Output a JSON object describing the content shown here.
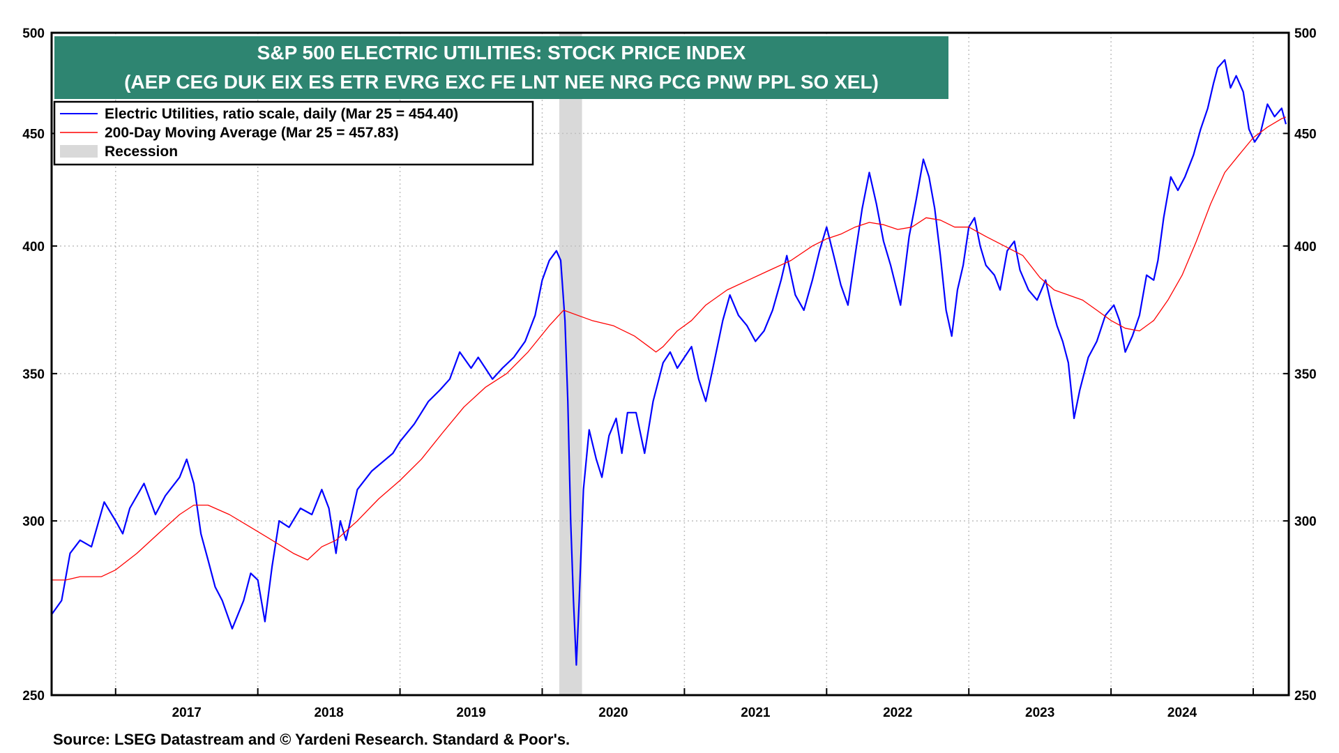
{
  "source_note": "Source: LSEG Datastream and © Yardeni Research. Standard & Poor's.",
  "chart_data": {
    "type": "line",
    "title": "S&P 500 ELECTRIC UTILITIES: STOCK PRICE INDEX",
    "subtitle": "(AEP CEG DUK EIX ES ETR EVRG EXC FE LNT NEE NRG PCG PNW PPL SO XEL)",
    "y_scale": "log",
    "ylim": [
      250,
      500
    ],
    "y_ticks": [
      250,
      300,
      350,
      400,
      450,
      500
    ],
    "xlim": [
      2016.55,
      2025.25
    ],
    "x_ticks": [
      {
        "label": "2017",
        "value": 2017.0
      },
      {
        "label": "2018",
        "value": 2018.0
      },
      {
        "label": "2019",
        "value": 2019.0
      },
      {
        "label": "2020",
        "value": 2020.0
      },
      {
        "label": "2021",
        "value": 2021.0
      },
      {
        "label": "2022",
        "value": 2022.0
      },
      {
        "label": "2023",
        "value": 2023.0
      },
      {
        "label": "2024",
        "value": 2024.0
      }
    ],
    "grid": true,
    "legend_position": "top-left",
    "recession": {
      "label": "Recession",
      "start": 2020.12,
      "end": 2020.28,
      "color": "#d9d9d9"
    },
    "series": [
      {
        "name": "Electric Utilities, ratio scale, daily (Mar 25 = 454.40)",
        "color": "#0000ff",
        "points": [
          [
            2016.55,
            272
          ],
          [
            2016.62,
            276
          ],
          [
            2016.68,
            290
          ],
          [
            2016.75,
            294
          ],
          [
            2016.83,
            292
          ],
          [
            2016.92,
            306
          ],
          [
            2017.0,
            300
          ],
          [
            2017.05,
            296
          ],
          [
            2017.1,
            304
          ],
          [
            2017.2,
            312
          ],
          [
            2017.28,
            302
          ],
          [
            2017.35,
            308
          ],
          [
            2017.45,
            314
          ],
          [
            2017.5,
            320
          ],
          [
            2017.55,
            312
          ],
          [
            2017.6,
            296
          ],
          [
            2017.65,
            288
          ],
          [
            2017.7,
            280
          ],
          [
            2017.75,
            276
          ],
          [
            2017.82,
            268
          ],
          [
            2017.9,
            276
          ],
          [
            2017.95,
            284
          ],
          [
            2018.0,
            282
          ],
          [
            2018.05,
            270
          ],
          [
            2018.1,
            286
          ],
          [
            2018.15,
            300
          ],
          [
            2018.22,
            298
          ],
          [
            2018.3,
            304
          ],
          [
            2018.38,
            302
          ],
          [
            2018.45,
            310
          ],
          [
            2018.5,
            304
          ],
          [
            2018.55,
            290
          ],
          [
            2018.58,
            300
          ],
          [
            2018.62,
            294
          ],
          [
            2018.7,
            310
          ],
          [
            2018.8,
            316
          ],
          [
            2018.9,
            320
          ],
          [
            2018.95,
            322
          ],
          [
            2019.0,
            326
          ],
          [
            2019.1,
            332
          ],
          [
            2019.2,
            340
          ],
          [
            2019.28,
            344
          ],
          [
            2019.35,
            348
          ],
          [
            2019.42,
            358
          ],
          [
            2019.5,
            352
          ],
          [
            2019.55,
            356
          ],
          [
            2019.6,
            352
          ],
          [
            2019.65,
            348
          ],
          [
            2019.72,
            352
          ],
          [
            2019.8,
            356
          ],
          [
            2019.88,
            362
          ],
          [
            2019.95,
            372
          ],
          [
            2020.0,
            386
          ],
          [
            2020.05,
            394
          ],
          [
            2020.1,
            398
          ],
          [
            2020.13,
            394
          ],
          [
            2020.16,
            370
          ],
          [
            2020.18,
            340
          ],
          [
            2020.2,
            300
          ],
          [
            2020.22,
            276
          ],
          [
            2020.24,
            258
          ],
          [
            2020.26,
            276
          ],
          [
            2020.29,
            310
          ],
          [
            2020.33,
            330
          ],
          [
            2020.38,
            320
          ],
          [
            2020.42,
            314
          ],
          [
            2020.47,
            328
          ],
          [
            2020.52,
            334
          ],
          [
            2020.56,
            322
          ],
          [
            2020.6,
            336
          ],
          [
            2020.66,
            336
          ],
          [
            2020.72,
            322
          ],
          [
            2020.78,
            340
          ],
          [
            2020.85,
            354
          ],
          [
            2020.9,
            358
          ],
          [
            2020.95,
            352
          ],
          [
            2021.0,
            356
          ],
          [
            2021.05,
            360
          ],
          [
            2021.1,
            348
          ],
          [
            2021.15,
            340
          ],
          [
            2021.2,
            352
          ],
          [
            2021.27,
            370
          ],
          [
            2021.32,
            380
          ],
          [
            2021.38,
            372
          ],
          [
            2021.44,
            368
          ],
          [
            2021.5,
            362
          ],
          [
            2021.56,
            366
          ],
          [
            2021.62,
            374
          ],
          [
            2021.68,
            386
          ],
          [
            2021.72,
            396
          ],
          [
            2021.78,
            380
          ],
          [
            2021.84,
            374
          ],
          [
            2021.9,
            386
          ],
          [
            2021.95,
            398
          ],
          [
            2022.0,
            408
          ],
          [
            2022.05,
            396
          ],
          [
            2022.1,
            384
          ],
          [
            2022.15,
            376
          ],
          [
            2022.2,
            396
          ],
          [
            2022.25,
            416
          ],
          [
            2022.3,
            432
          ],
          [
            2022.35,
            418
          ],
          [
            2022.4,
            402
          ],
          [
            2022.45,
            392
          ],
          [
            2022.52,
            376
          ],
          [
            2022.58,
            404
          ],
          [
            2022.63,
            420
          ],
          [
            2022.68,
            438
          ],
          [
            2022.72,
            430
          ],
          [
            2022.76,
            416
          ],
          [
            2022.8,
            396
          ],
          [
            2022.84,
            374
          ],
          [
            2022.88,
            364
          ],
          [
            2022.92,
            382
          ],
          [
            2022.96,
            392
          ],
          [
            2023.0,
            408
          ],
          [
            2023.04,
            412
          ],
          [
            2023.08,
            400
          ],
          [
            2023.12,
            392
          ],
          [
            2023.18,
            388
          ],
          [
            2023.22,
            382
          ],
          [
            2023.27,
            398
          ],
          [
            2023.32,
            402
          ],
          [
            2023.36,
            390
          ],
          [
            2023.42,
            382
          ],
          [
            2023.48,
            378
          ],
          [
            2023.54,
            386
          ],
          [
            2023.58,
            376
          ],
          [
            2023.62,
            368
          ],
          [
            2023.66,
            362
          ],
          [
            2023.7,
            354
          ],
          [
            2023.74,
            334
          ],
          [
            2023.78,
            344
          ],
          [
            2023.84,
            356
          ],
          [
            2023.9,
            362
          ],
          [
            2023.96,
            372
          ],
          [
            2024.02,
            376
          ],
          [
            2024.06,
            370
          ],
          [
            2024.1,
            358
          ],
          [
            2024.15,
            364
          ],
          [
            2024.2,
            372
          ],
          [
            2024.25,
            388
          ],
          [
            2024.3,
            386
          ],
          [
            2024.33,
            394
          ],
          [
            2024.37,
            412
          ],
          [
            2024.42,
            430
          ],
          [
            2024.47,
            424
          ],
          [
            2024.52,
            430
          ],
          [
            2024.58,
            440
          ],
          [
            2024.63,
            452
          ],
          [
            2024.68,
            462
          ],
          [
            2024.72,
            474
          ],
          [
            2024.75,
            482
          ],
          [
            2024.8,
            486
          ],
          [
            2024.84,
            472
          ],
          [
            2024.88,
            478
          ],
          [
            2024.93,
            470
          ],
          [
            2024.97,
            452
          ],
          [
            2025.01,
            446
          ],
          [
            2025.05,
            450
          ],
          [
            2025.1,
            464
          ],
          [
            2025.15,
            458
          ],
          [
            2025.2,
            462
          ],
          [
            2025.23,
            454.4
          ]
        ]
      },
      {
        "name": "200-Day Moving Average (Mar 25 = 457.83)",
        "color": "#ff0000",
        "points": [
          [
            2016.55,
            282
          ],
          [
            2016.65,
            282
          ],
          [
            2016.75,
            283
          ],
          [
            2016.9,
            283
          ],
          [
            2017.0,
            285
          ],
          [
            2017.15,
            290
          ],
          [
            2017.3,
            296
          ],
          [
            2017.45,
            302
          ],
          [
            2017.55,
            305
          ],
          [
            2017.65,
            305
          ],
          [
            2017.8,
            302
          ],
          [
            2017.95,
            298
          ],
          [
            2018.1,
            294
          ],
          [
            2018.25,
            290
          ],
          [
            2018.35,
            288
          ],
          [
            2018.45,
            292
          ],
          [
            2018.55,
            294
          ],
          [
            2018.7,
            300
          ],
          [
            2018.85,
            307
          ],
          [
            2019.0,
            313
          ],
          [
            2019.15,
            320
          ],
          [
            2019.3,
            329
          ],
          [
            2019.45,
            338
          ],
          [
            2019.6,
            345
          ],
          [
            2019.75,
            350
          ],
          [
            2019.9,
            358
          ],
          [
            2020.05,
            368
          ],
          [
            2020.15,
            374
          ],
          [
            2020.25,
            372
          ],
          [
            2020.35,
            370
          ],
          [
            2020.5,
            368
          ],
          [
            2020.65,
            364
          ],
          [
            2020.75,
            360
          ],
          [
            2020.8,
            358
          ],
          [
            2020.85,
            360
          ],
          [
            2020.95,
            366
          ],
          [
            2021.05,
            370
          ],
          [
            2021.15,
            376
          ],
          [
            2021.3,
            382
          ],
          [
            2021.45,
            386
          ],
          [
            2021.6,
            390
          ],
          [
            2021.75,
            394
          ],
          [
            2021.9,
            400
          ],
          [
            2022.0,
            403
          ],
          [
            2022.1,
            405
          ],
          [
            2022.2,
            408
          ],
          [
            2022.3,
            410
          ],
          [
            2022.4,
            409
          ],
          [
            2022.5,
            407
          ],
          [
            2022.6,
            408
          ],
          [
            2022.7,
            412
          ],
          [
            2022.8,
            411
          ],
          [
            2022.9,
            408
          ],
          [
            2023.0,
            408
          ],
          [
            2023.12,
            404
          ],
          [
            2023.25,
            400
          ],
          [
            2023.38,
            396
          ],
          [
            2023.5,
            387
          ],
          [
            2023.6,
            382
          ],
          [
            2023.7,
            380
          ],
          [
            2023.8,
            378
          ],
          [
            2023.9,
            374
          ],
          [
            2024.0,
            370
          ],
          [
            2024.1,
            367
          ],
          [
            2024.2,
            366
          ],
          [
            2024.3,
            370
          ],
          [
            2024.4,
            378
          ],
          [
            2024.5,
            388
          ],
          [
            2024.6,
            402
          ],
          [
            2024.7,
            418
          ],
          [
            2024.8,
            432
          ],
          [
            2024.9,
            440
          ],
          [
            2025.0,
            448
          ],
          [
            2025.1,
            453
          ],
          [
            2025.2,
            457
          ],
          [
            2025.23,
            457.83
          ]
        ]
      }
    ]
  },
  "legend": {
    "items": [
      {
        "label": "Electric Utilities, ratio scale, daily (Mar 25 = 454.40)",
        "kind": "line",
        "color": "#0000ff"
      },
      {
        "label": "200-Day Moving Average (Mar 25 = 457.83)",
        "kind": "line",
        "color": "#ff0000"
      },
      {
        "label": "Recession",
        "kind": "box",
        "color": "#d9d9d9"
      }
    ]
  },
  "colors": {
    "title_bg": "#2e8571",
    "title_text": "#ffffff",
    "axis": "#000000",
    "grid": "#bfbfbf"
  }
}
